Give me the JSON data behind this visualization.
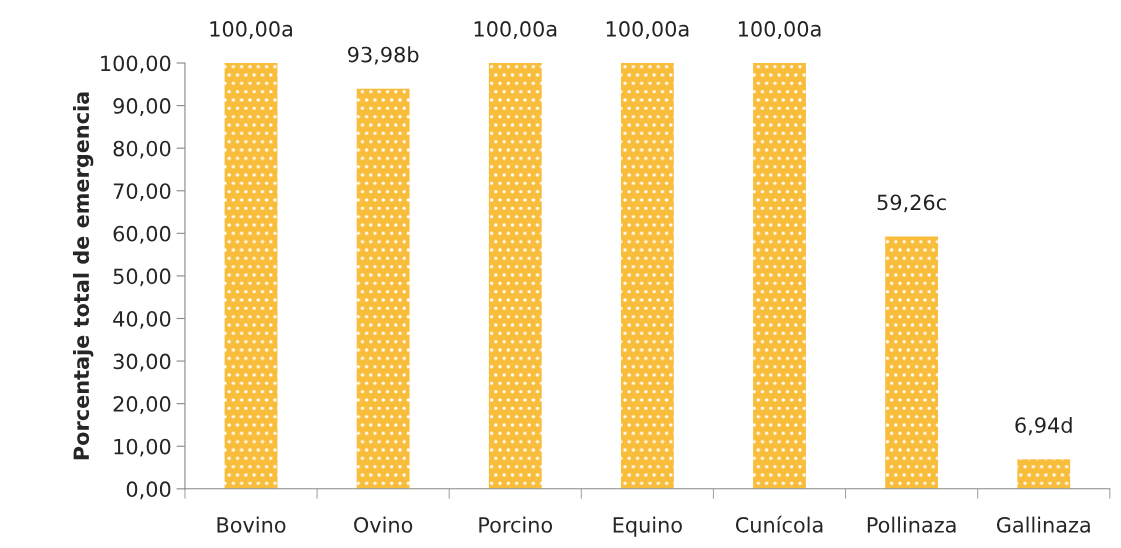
{
  "chart_data": {
    "type": "bar",
    "ylabel": "Porcentaje total de emergencia",
    "categories": [
      "Bovino",
      "Ovino",
      "Porcino",
      "Equino",
      "Cunícola",
      "Pollinaza",
      "Gallinaza"
    ],
    "values": [
      100.0,
      93.98,
      100.0,
      100.0,
      100.0,
      59.26,
      6.94
    ],
    "value_labels": [
      "100,00a",
      "93,98b",
      "100,00a",
      "100,00a",
      "100,00a",
      "59,26c",
      "6,94d"
    ],
    "color": "#f9bd3c",
    "ylim": [
      0,
      100
    ],
    "yticks": [
      {
        "value": 0,
        "label": "0,00"
      },
      {
        "value": 10,
        "label": "10,00"
      },
      {
        "value": 20,
        "label": "20,00"
      },
      {
        "value": 30,
        "label": "30,00"
      },
      {
        "value": 40,
        "label": "40,00"
      },
      {
        "value": 50,
        "label": "50,00"
      },
      {
        "value": 60,
        "label": "60,00"
      },
      {
        "value": 70,
        "label": "70,00"
      },
      {
        "value": 80,
        "label": "80,00"
      },
      {
        "value": 90,
        "label": "90,00"
      },
      {
        "value": 100,
        "label": "100,00"
      }
    ],
    "grid": false
  }
}
